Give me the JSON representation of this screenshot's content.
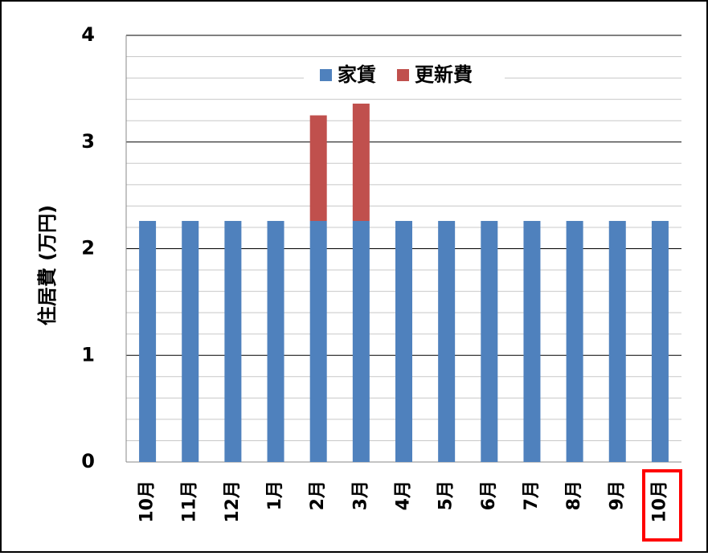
{
  "chart_data": {
    "type": "stacked_bar",
    "y_label": "住居費 (万円)",
    "categories": [
      "10月",
      "11月",
      "12月",
      "1月",
      "2月",
      "3月",
      "4月",
      "5月",
      "6月",
      "7月",
      "8月",
      "9月",
      "10月"
    ],
    "series": [
      {
        "name": "家賃",
        "color": "#4f81bd",
        "values": [
          2.26,
          2.26,
          2.26,
          2.26,
          2.26,
          2.26,
          2.26,
          2.26,
          2.26,
          2.26,
          2.26,
          2.26,
          2.26
        ]
      },
      {
        "name": "更新費",
        "color": "#c0504d",
        "values": [
          null,
          null,
          null,
          null,
          0.99,
          1.1,
          null,
          null,
          null,
          null,
          null,
          null,
          null
        ]
      }
    ],
    "ylim": [
      0,
      4
    ],
    "yticks": [
      0,
      1,
      2,
      3,
      4
    ],
    "minor_yticks": [
      0.2,
      0.4,
      0.6,
      0.8,
      1.2,
      1.4,
      1.6,
      1.8,
      2.2,
      2.4,
      2.6,
      2.8,
      3.2,
      3.4,
      3.6,
      3.8
    ],
    "grid": true,
    "legend": "top"
  }
}
